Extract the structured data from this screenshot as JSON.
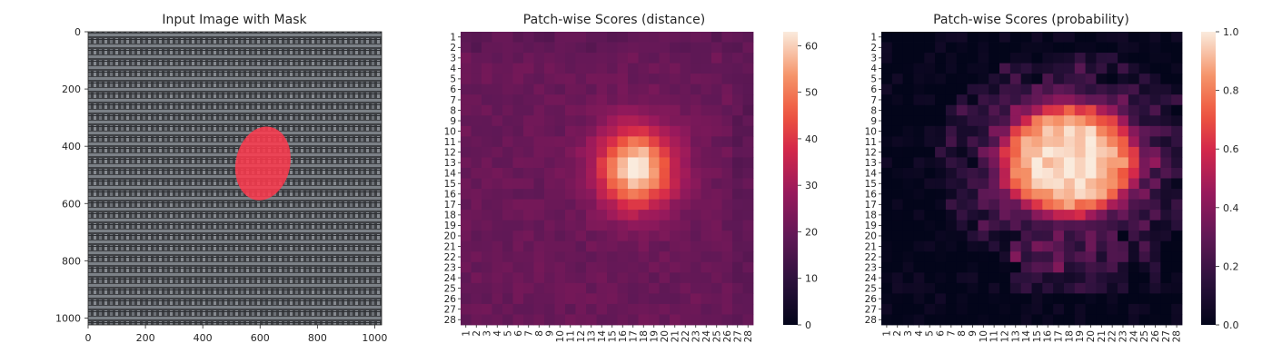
{
  "chart_data": [
    {
      "type": "image",
      "title": "Input Image with Mask",
      "xlim": [
        0,
        1024
      ],
      "ylim": [
        0,
        1024
      ],
      "x_ticks": [
        "0",
        "200",
        "400",
        "600",
        "800",
        "1000"
      ],
      "y_ticks": [
        "0",
        "200",
        "400",
        "600",
        "800",
        "1000"
      ],
      "x_tick_values": [
        0,
        200,
        400,
        600,
        800,
        1000
      ],
      "y_tick_values": [
        0,
        200,
        400,
        600,
        800,
        1000
      ],
      "background_color": "#4a4c50",
      "mask_color": "#ff3a4e",
      "mask": {
        "cx": 610,
        "cy": 460,
        "rx": 95,
        "ry": 130
      }
    },
    {
      "type": "heatmap",
      "title": "Patch-wise Scores (distance)",
      "grid_size": 28,
      "x_ticks": [
        "1",
        "2",
        "3",
        "4",
        "5",
        "6",
        "7",
        "8",
        "9",
        "10",
        "11",
        "12",
        "13",
        "14",
        "15",
        "16",
        "17",
        "18",
        "19",
        "20",
        "21",
        "22",
        "23",
        "24",
        "25",
        "26",
        "27",
        "28"
      ],
      "y_ticks": [
        "1",
        "2",
        "3",
        "4",
        "5",
        "6",
        "7",
        "8",
        "9",
        "10",
        "11",
        "12",
        "13",
        "14",
        "15",
        "16",
        "17",
        "18",
        "19",
        "20",
        "21",
        "22",
        "23",
        "24",
        "25",
        "26",
        "27",
        "28"
      ],
      "colorbar": {
        "min": 0,
        "max": 63,
        "ticks": [
          "0",
          "10",
          "20",
          "30",
          "40",
          "50",
          "60"
        ],
        "tick_values": [
          0,
          10,
          20,
          30,
          40,
          50,
          60
        ]
      },
      "hotspot": {
        "row": 13.5,
        "col": 17.3,
        "peak": 63,
        "sigma_row": 2.8,
        "sigma_col": 2.6,
        "base": 20.5
      }
    },
    {
      "type": "heatmap",
      "title": "Patch-wise Scores (probability)",
      "grid_size": 28,
      "x_ticks": [
        "1",
        "2",
        "3",
        "4",
        "5",
        "6",
        "7",
        "8",
        "9",
        "10",
        "11",
        "12",
        "13",
        "14",
        "15",
        "16",
        "17",
        "18",
        "19",
        "20",
        "21",
        "22",
        "23",
        "24",
        "25",
        "26",
        "27",
        "28"
      ],
      "y_ticks": [
        "1",
        "2",
        "3",
        "4",
        "5",
        "6",
        "7",
        "8",
        "9",
        "10",
        "11",
        "12",
        "13",
        "14",
        "15",
        "16",
        "17",
        "18",
        "19",
        "20",
        "21",
        "22",
        "23",
        "24",
        "25",
        "26",
        "27",
        "28"
      ],
      "colorbar": {
        "min": 0,
        "max": 1,
        "ticks": [
          "0.0",
          "0.2",
          "0.4",
          "0.6",
          "0.8",
          "1.0"
        ],
        "tick_values": [
          0,
          0.2,
          0.4,
          0.6,
          0.8,
          1.0
        ]
      },
      "hotspot": {
        "row": 12.8,
        "col": 18.0,
        "radius_row": 5.6,
        "radius_col": 6.5
      }
    }
  ]
}
